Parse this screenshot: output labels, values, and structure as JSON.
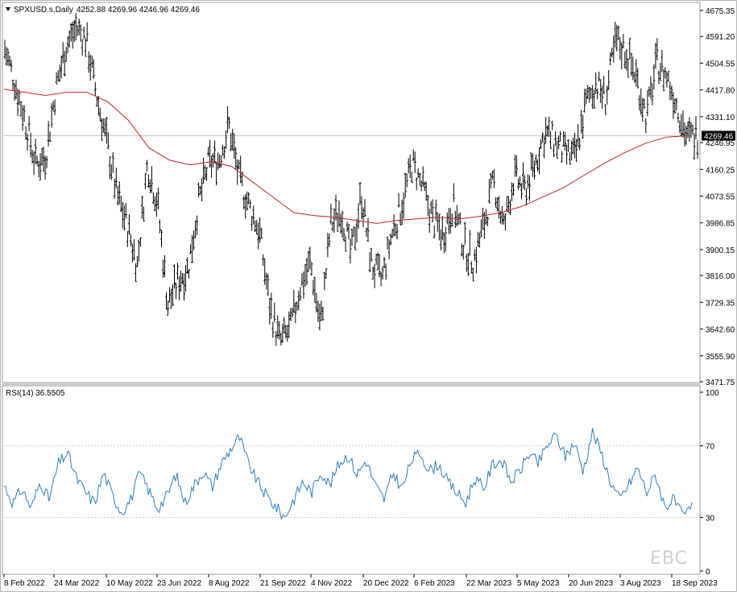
{
  "header": {
    "symbol_line": "SPXUSD.s,Daily",
    "ohlc": "4252.88 4269.96 4246.96 4269.46"
  },
  "price_axis": {
    "ticks": [
      "4675.35",
      "4591.20",
      "4504.55",
      "4417.80",
      "4331.10",
      "4246.95",
      "4160.25",
      "4073.55",
      "3986.85",
      "3900.15",
      "3816.00",
      "3729.35",
      "3642.60",
      "3555.90",
      "3471.75"
    ],
    "current_label": "4269.46"
  },
  "rsi_panel": {
    "label": "RSI(14) 36.5505",
    "ticks": [
      "100",
      "70",
      "30",
      "0"
    ]
  },
  "date_axis": {
    "labels": [
      "8 Feb 2022",
      "24 Mar 2022",
      "10 May 2022",
      "23 Jun 2022",
      "8 Aug 2022",
      "21 Sep 2022",
      "4 Nov 2022",
      "20 Dec 2022",
      "6 Feb 2023",
      "22 Mar 2023",
      "5 May 2023",
      "20 Jun 2023",
      "3 Aug 2023",
      "18 Sep 2023"
    ]
  },
  "watermark": "EBC",
  "colors": {
    "bars": "#000000",
    "ma": "#c82020",
    "rsi": "#2a7fbf",
    "grid": "#c8c8c8",
    "current_label_bg": "#000000"
  },
  "chart_data": [
    {
      "type": "ohlc",
      "title": "SPXUSD.s,Daily",
      "x_labels": [
        "8 Feb 2022",
        "24 Mar 2022",
        "10 May 2022",
        "23 Jun 2022",
        "8 Aug 2022",
        "21 Sep 2022",
        "4 Nov 2022",
        "20 Dec 2022",
        "6 Feb 2023",
        "22 Mar 2023",
        "5 May 2023",
        "20 Jun 2023",
        "3 Aug 2023",
        "18 Sep 2023"
      ],
      "close_points": [
        4550,
        4440,
        4320,
        4180,
        4200,
        4420,
        4560,
        4620,
        4580,
        4400,
        4250,
        4080,
        3980,
        3850,
        4180,
        4050,
        3720,
        3800,
        3840,
        4050,
        4180,
        4190,
        4305,
        4130,
        4040,
        3960,
        3720,
        3600,
        3640,
        3780,
        3860,
        3650,
        3980,
        4030,
        3880,
        4080,
        3850,
        3800,
        3950,
        4050,
        4180,
        4100,
        4000,
        3950,
        4050,
        3920,
        3860,
        3980,
        4120,
        3970,
        4140,
        4090,
        4170,
        4280,
        4250,
        4210,
        4200,
        4370,
        4440,
        4390,
        4580,
        4540,
        4460,
        4330,
        4510,
        4460,
        4370,
        4260,
        4269.46
      ],
      "ma_points": [
        4420,
        4410,
        4400,
        4410,
        4410,
        4380,
        4320,
        4230,
        4190,
        4175,
        4185,
        4170,
        4120,
        4070,
        4020,
        4010,
        4005,
        3995,
        3985,
        3995,
        4000,
        4005,
        4000,
        4008,
        4020,
        4040,
        4070,
        4100,
        4140,
        4180,
        4215,
        4245,
        4265,
        4269
      ],
      "ylim": [
        3471.75,
        4675.35
      ],
      "current": "4269.46"
    },
    {
      "type": "line",
      "title": "RSI(14) 36.5505",
      "ylim": [
        0,
        100
      ],
      "levels": [
        30,
        70
      ],
      "values": [
        48,
        38,
        46,
        35,
        50,
        40,
        60,
        66,
        52,
        44,
        38,
        55,
        42,
        33,
        40,
        55,
        45,
        35,
        42,
        54,
        38,
        48,
        56,
        47,
        60,
        68,
        75,
        60,
        50,
        42,
        36,
        30,
        40,
        50,
        44,
        56,
        48,
        60,
        65,
        54,
        62,
        48,
        40,
        55,
        46,
        62,
        66,
        56,
        60,
        50,
        44,
        38,
        52,
        46,
        60,
        62,
        50,
        56,
        66,
        60,
        70,
        76,
        64,
        72,
        56,
        78,
        66,
        50,
        40,
        48,
        58,
        44,
        54,
        36,
        40,
        30,
        36
      ]
    }
  ]
}
